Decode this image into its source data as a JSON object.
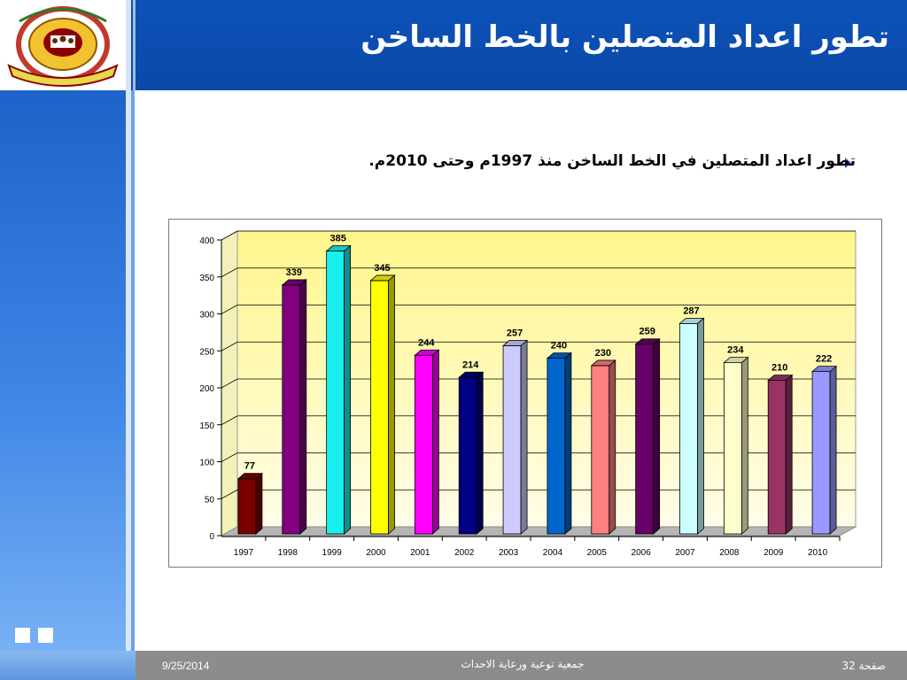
{
  "slide": {
    "title": "تطور اعداد المتصلين بالخط الساخن",
    "bullet": "تطور اعداد المتصلين في الخط الساخن منذ 1997م وحتى 2010م."
  },
  "footer": {
    "date": "9/25/2014",
    "organization": "جمعية توعية ورعاية الاحداث",
    "page_label": "صفحة 32"
  },
  "colors": {
    "header_blue": "#0d52b8",
    "footer_gray": "#8c8c8c",
    "plot_background": "#fff9a6"
  },
  "chart_data": {
    "type": "bar",
    "title": "",
    "xlabel": "",
    "ylabel": "",
    "ylim": [
      0,
      400
    ],
    "yticks": [
      0,
      50,
      100,
      150,
      200,
      250,
      300,
      350,
      400
    ],
    "grid": true,
    "legend": "none",
    "categories": [
      "1997",
      "1998",
      "1999",
      "2000",
      "2001",
      "2002",
      "2003",
      "2004",
      "2005",
      "2006",
      "2007",
      "2008",
      "2009",
      "2010"
    ],
    "values": [
      77,
      339,
      385,
      345,
      244,
      214,
      257,
      240,
      230,
      259,
      287,
      234,
      210,
      222
    ],
    "bar_colors": [
      "#7a0000",
      "#800080",
      "#18f0f0",
      "#ffff00",
      "#ff00ff",
      "#000080",
      "#ccccff",
      "#0066cc",
      "#ff8080",
      "#660066",
      "#ccffff",
      "#ffffcc",
      "#993366",
      "#9999ff"
    ]
  }
}
